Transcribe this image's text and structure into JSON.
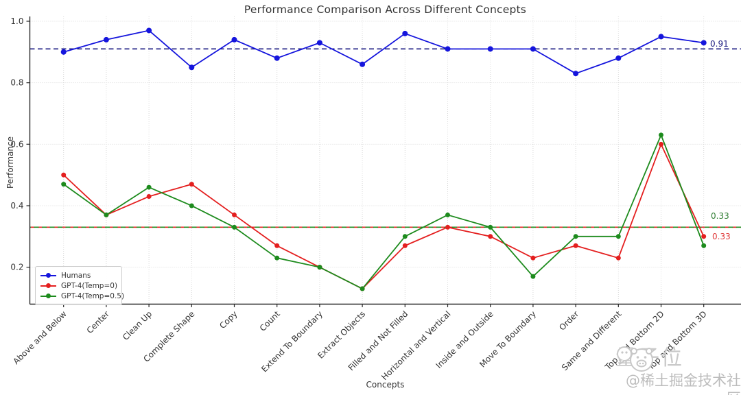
{
  "chart_data": {
    "type": "line",
    "title": "Performance Comparison Across Different Concepts",
    "xlabel": "Concepts",
    "ylabel": "Performance",
    "grid": true,
    "legend_position": "lower left",
    "ylim": [
      0.08,
      1.02
    ],
    "yticks": [
      {
        "label": "1.0",
        "value": 1.0
      },
      {
        "label": "0.8",
        "value": 0.8
      },
      {
        "label": "0.6",
        "value": 0.6
      },
      {
        "label": "0.4",
        "value": 0.4
      },
      {
        "label": "0.2",
        "value": 0.2
      }
    ],
    "categories": [
      "Above and Below",
      "Center",
      "Clean Up",
      "Complete Shape",
      "Copy",
      "Count",
      "Extend To Boundary",
      "Extract Objects",
      "Filled and Not Filled",
      "Horizontal and Vertical",
      "Inside and Outside",
      "Move To Boundary",
      "Order",
      "Same and Different",
      "Top and Bottom 2D",
      "Top and Bottom 3D"
    ],
    "series": [
      {
        "name": "Humans",
        "color": "#1515dd",
        "marker_radius": 4,
        "values": [
          0.9,
          0.94,
          0.97,
          0.85,
          0.94,
          0.88,
          0.93,
          0.86,
          0.96,
          0.91,
          0.91,
          0.91,
          0.83,
          0.88,
          0.95,
          0.93
        ]
      },
      {
        "name": "GPT-4(Temp=0)",
        "color": "#e41f1f",
        "marker_radius": 3.5,
        "values": [
          0.5,
          0.37,
          0.43,
          0.47,
          0.37,
          0.27,
          0.2,
          0.13,
          0.27,
          0.33,
          0.3,
          0.23,
          0.27,
          0.23,
          0.6,
          0.3
        ]
      },
      {
        "name": "GPT-4(Temp=0.5)",
        "color": "#1d8b1d",
        "marker_radius": 3.5,
        "values": [
          0.47,
          0.37,
          0.46,
          0.4,
          0.33,
          0.23,
          0.2,
          0.13,
          0.3,
          0.37,
          0.33,
          0.17,
          0.3,
          0.3,
          0.63,
          0.27
        ]
      }
    ],
    "reference_lines": [
      {
        "name": "humans-mean",
        "value": 0.91,
        "label": "0.91",
        "color": "#1a1a80",
        "dash_offset": 0
      },
      {
        "name": "gpt4-temp0-mean",
        "value": 0.33,
        "label": "0.33",
        "color": "#e41f1f",
        "dash_offset": 0
      },
      {
        "name": "gpt4-temp05-mean",
        "value": 0.33,
        "label": "0.33",
        "color": "#1d8b1d",
        "dash_offset": 5.5
      }
    ]
  },
  "watermark": {
    "brand": "量子位",
    "credit": "@稀土掘金技术社区",
    "logo": "wechat-qbitai-logo",
    "color": "#c8c8c8"
  }
}
